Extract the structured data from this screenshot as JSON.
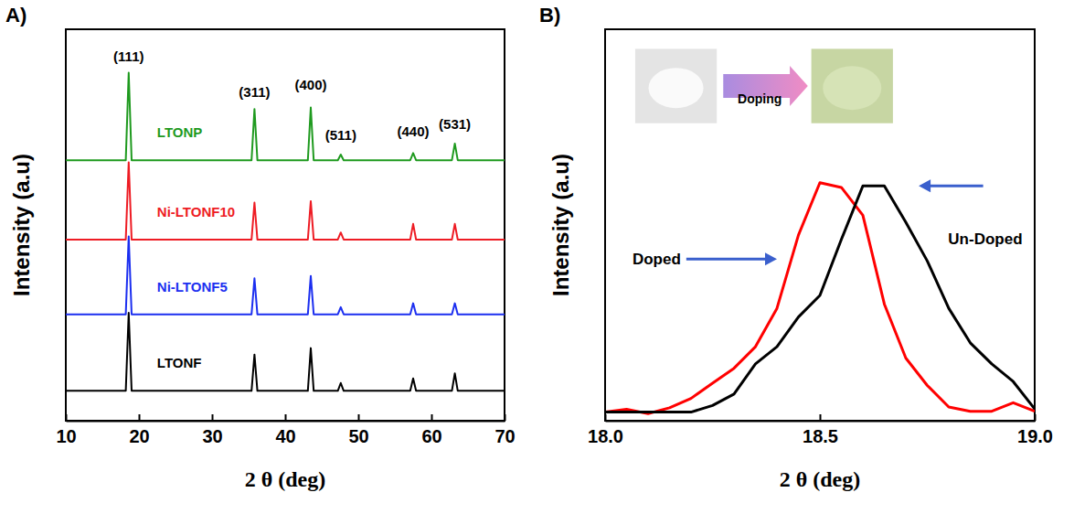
{
  "chart_data": [
    {
      "type": "line",
      "panel_label": "A)",
      "xlabel": "2 θ (deg)",
      "ylabel": "Intensity (a.u)",
      "xlim": [
        10,
        70
      ],
      "xticks": [
        10,
        20,
        30,
        40,
        50,
        60,
        70
      ],
      "ylim": [
        0,
        110
      ],
      "tick_labels": "x",
      "x": [
        10,
        18.2,
        18.6,
        19.0,
        35.4,
        35.8,
        36.2,
        43.1,
        43.5,
        43.9,
        47.2,
        47.6,
        48.0,
        57.1,
        57.5,
        57.9,
        62.8,
        63.2,
        63.6,
        70
      ],
      "series": [
        {
          "name": "LTONP",
          "color": "#1f9a1f",
          "values": [
            73.2,
            73.2,
            97.8,
            73.2,
            73.2,
            87.6,
            73.2,
            73.2,
            88,
            73.2,
            73.2,
            74.8,
            73.2,
            73.2,
            75.2,
            73.2,
            73.2,
            77.9,
            73.2,
            73.2
          ]
        },
        {
          "name": "Ni-LTONF10",
          "color": "#ee1c24",
          "values": [
            50.9,
            50.9,
            72.6,
            50.9,
            50.9,
            61.3,
            50.9,
            50.9,
            61.7,
            50.9,
            50.9,
            52.9,
            50.9,
            50.9,
            55.3,
            50.9,
            50.9,
            55.3,
            50.9,
            50.9
          ]
        },
        {
          "name": "Ni-LTONF5",
          "color": "#1c2ff0",
          "values": [
            29.9,
            29.9,
            51.8,
            29.9,
            29.9,
            40,
            29.9,
            29.9,
            40.7,
            29.9,
            29.9,
            31.9,
            29.9,
            29.9,
            33,
            29.9,
            29.9,
            33,
            29.9,
            29.9
          ]
        },
        {
          "name": "LTONF",
          "color": "#000000",
          "values": [
            8.4,
            8.4,
            30.3,
            8.4,
            8.4,
            18.6,
            8.4,
            8.4,
            20.4,
            8.4,
            8.4,
            10.6,
            8.4,
            8.4,
            11.9,
            8.4,
            8.4,
            13.3,
            8.4,
            8.4
          ]
        }
      ],
      "annotations": [
        {
          "text": "(111)",
          "x": 18.6,
          "y": 101
        },
        {
          "text": "(311)",
          "x": 35.8,
          "y": 91
        },
        {
          "text": "(400)",
          "x": 43.5,
          "y": 93
        },
        {
          "text": "(511)",
          "x": 47.6,
          "y": 79
        },
        {
          "text": "(440)",
          "x": 57.5,
          "y": 80
        },
        {
          "text": "(531)",
          "x": 63.2,
          "y": 82
        }
      ]
    },
    {
      "type": "line",
      "panel_label": "B)",
      "xlabel": "2 θ (deg)",
      "ylabel": "Intensity (a.u)",
      "xlim": [
        18.0,
        19.0
      ],
      "xticks": [
        {
          "value": 18,
          "label": "18.0"
        },
        18.5,
        {
          "value": 19,
          "label": "19.0"
        }
      ],
      "ylim": [
        0,
        100
      ],
      "tick_labels": "x",
      "x": [
        18.0,
        18.05,
        18.1,
        18.15,
        18.2,
        18.25,
        18.3,
        18.35,
        18.4,
        18.45,
        18.5,
        18.55,
        18.6,
        18.65,
        18.7,
        18.75,
        18.8,
        18.85,
        18.9,
        18.95,
        19.0
      ],
      "series": [
        {
          "name": "Doped",
          "color": "#ff0000",
          "values": [
            2.2,
            2.9,
            1.8,
            3.3,
            5.7,
            9.6,
            13.4,
            18.9,
            28.7,
            47.4,
            60.8,
            59.6,
            52.5,
            29.8,
            16,
            9,
            3.5,
            2.4,
            2.4,
            4.6,
            2.4
          ]
        },
        {
          "name": "Un-Doped",
          "color": "#000000",
          "values": [
            2.2,
            2.2,
            2.2,
            2.2,
            2.2,
            3.9,
            6.8,
            14.5,
            18.9,
            26.5,
            32,
            46.3,
            60,
            60,
            50.7,
            40.8,
            28.7,
            19.9,
            14.5,
            10,
            3
          ]
        }
      ],
      "annotations": [
        {
          "text": "Doping",
          "x": 18.36,
          "y": 82
        }
      ]
    }
  ]
}
